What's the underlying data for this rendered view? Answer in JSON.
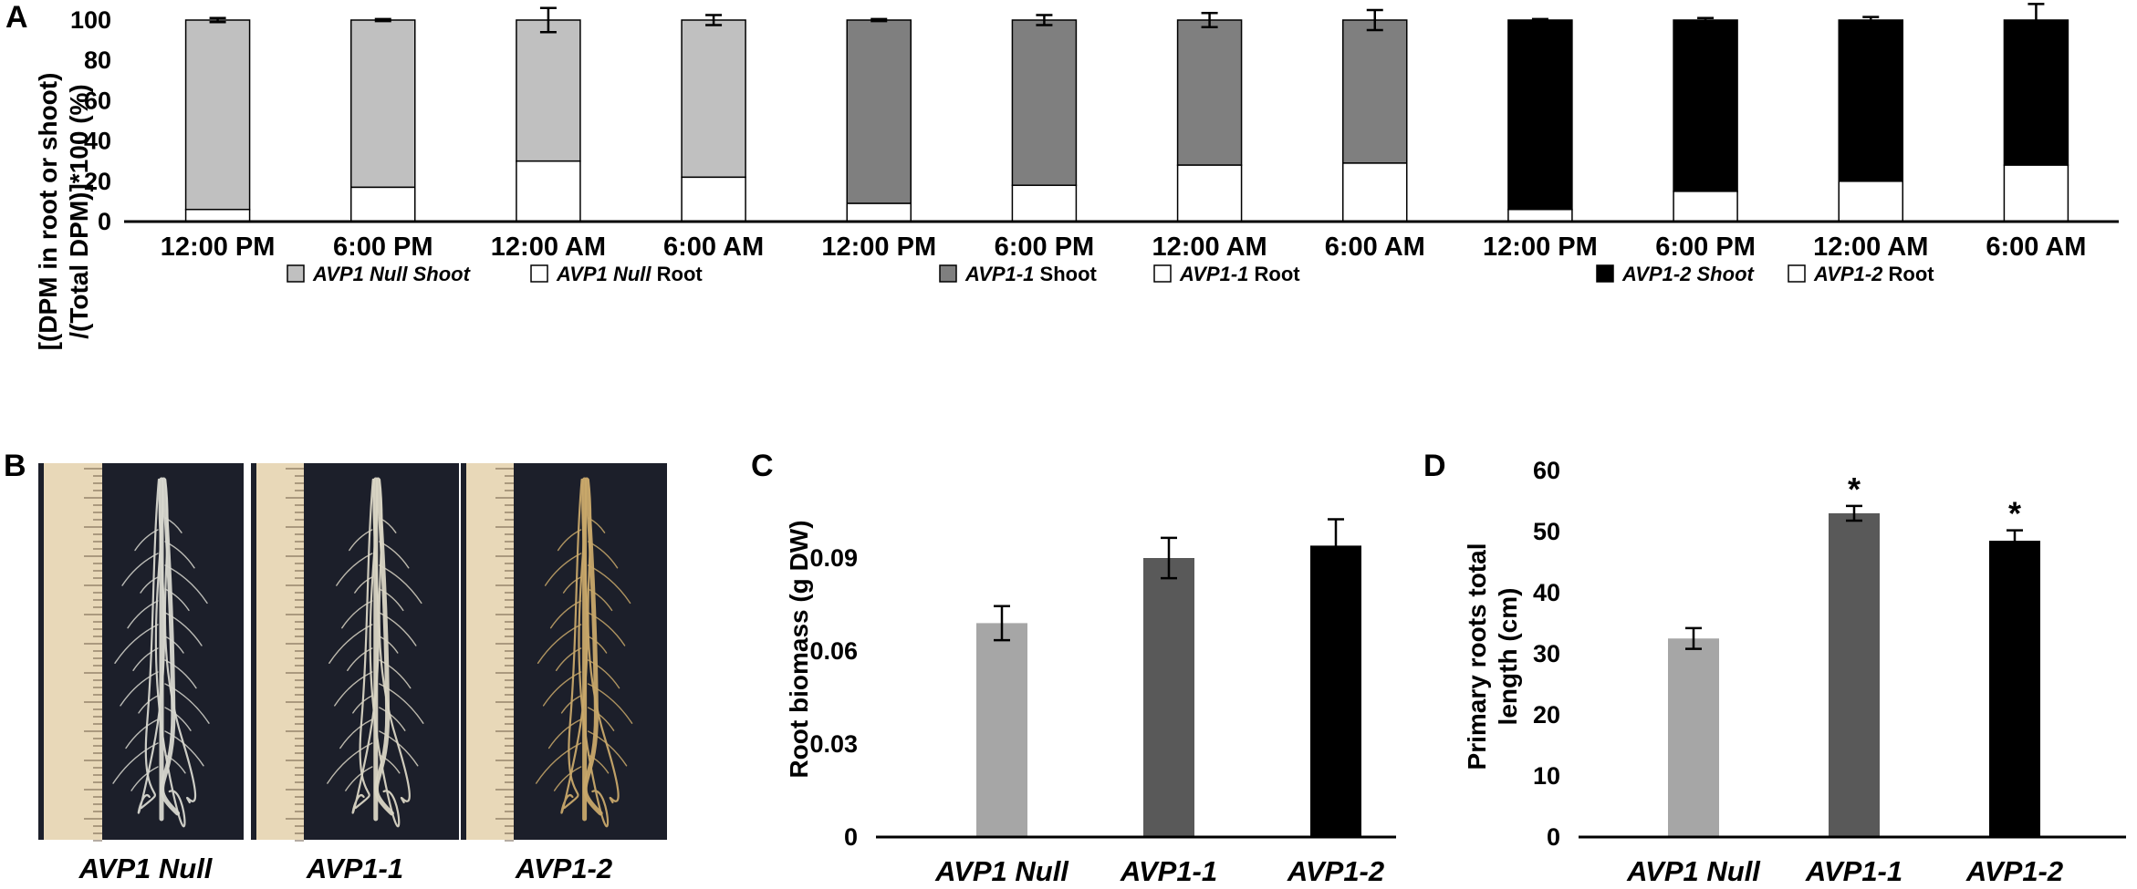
{
  "panels": {
    "a": "A",
    "b": "B",
    "c": "C",
    "d": "D"
  },
  "chart_data": [
    {
      "id": "A",
      "type": "bar",
      "stacked": true,
      "ylabel_line1": "[(DPM in root or shoot)",
      "ylabel_line2": "/(Total DPM)]*100 (%)",
      "ylim": [
        0,
        100
      ],
      "yticks": [
        "0",
        "20",
        "40",
        "60",
        "80",
        "100"
      ],
      "categories": [
        "12:00 PM",
        "6:00 PM",
        "12:00 AM",
        "6:00 AM",
        "12:00 PM",
        "6:00 PM",
        "12:00 AM",
        "6:00 AM",
        "12:00 PM",
        "6:00 PM",
        "12:00 AM",
        "6:00 AM"
      ],
      "root": [
        6,
        17,
        30,
        22,
        9,
        18,
        28,
        29,
        6,
        15,
        20,
        28
      ],
      "shoot": [
        94,
        83,
        70,
        78,
        91,
        82,
        72,
        71,
        94,
        85,
        80,
        72
      ],
      "error": [
        1,
        0.5,
        6,
        2.5,
        0.5,
        2.5,
        3.5,
        5,
        0.5,
        1,
        1.5,
        8
      ],
      "shoot_colors": [
        "#c0c0c0",
        "#c0c0c0",
        "#c0c0c0",
        "#c0c0c0",
        "#7f7f7f",
        "#7f7f7f",
        "#7f7f7f",
        "#7f7f7f",
        "#000000",
        "#000000",
        "#000000",
        "#000000"
      ],
      "root_color": "#ffffff",
      "legend": [
        {
          "pre": "",
          "it": "AVP1 Null Shoot",
          "post": "",
          "color": "#c0c0c0"
        },
        {
          "pre": "",
          "it": "AVP1 Null",
          "post": " Root",
          "color": "#ffffff"
        },
        {
          "pre": "",
          "it": "AVP1-1",
          "post": " Shoot",
          "color": "#7f7f7f"
        },
        {
          "pre": "",
          "it": "AVP1-1",
          "post": " Root",
          "color": "#ffffff"
        },
        {
          "pre": "",
          "it": "AVP1-2 Shoot",
          "post": "",
          "color": "#000000"
        },
        {
          "pre": "",
          "it": "AVP1-2",
          "post": " Root",
          "color": "#ffffff"
        }
      ]
    },
    {
      "id": "C",
      "type": "bar",
      "ylabel": "Root biomass (g DW)",
      "ylim": [
        0,
        0.12
      ],
      "yticks": [
        "0",
        "0.03",
        "0.06",
        "0.09"
      ],
      "categories": [
        "AVP1 Null",
        "AVP1-1",
        "AVP1-2"
      ],
      "values": [
        0.069,
        0.09,
        0.094
      ],
      "error": [
        0.0055,
        0.0065,
        0.0085
      ],
      "colors": [
        "#a6a6a6",
        "#595959",
        "#000000"
      ]
    },
    {
      "id": "D",
      "type": "bar",
      "ylabel_line1": "Primary roots total",
      "ylabel_line2": "length (cm)",
      "ylim": [
        0,
        60
      ],
      "yticks": [
        "0",
        "10",
        "20",
        "30",
        "40",
        "50",
        "60"
      ],
      "categories": [
        "AVP1 Null",
        "AVP1-1",
        "AVP1-2"
      ],
      "values": [
        32.5,
        53,
        48.5
      ],
      "error": [
        1.7,
        1.2,
        1.7
      ],
      "significance": [
        "",
        "*",
        "*"
      ],
      "colors": [
        "#a6a6a6",
        "#595959",
        "#000000"
      ]
    }
  ],
  "photo": {
    "labels": [
      "AVP1 Null",
      "AVP1-1",
      "AVP1-2"
    ],
    "ruler_color": "#e8d8b8",
    "background_color": "#1c1f2a",
    "root_colors": [
      "#d7d7cf",
      "#d9d5c4",
      "#c8a86a"
    ]
  }
}
